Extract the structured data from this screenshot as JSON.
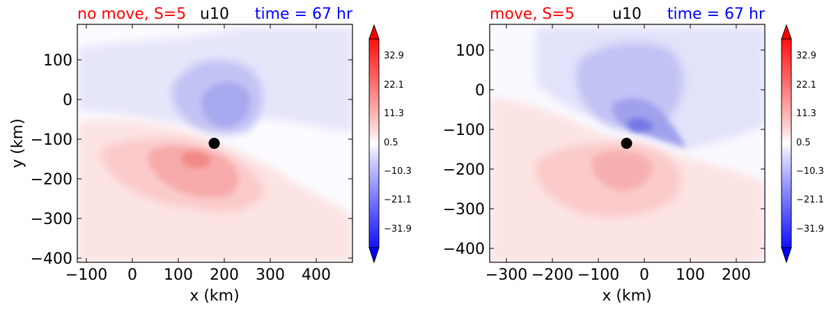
{
  "colors": {
    "red": "#ff0000",
    "blue": "#0000ff",
    "black": "#000000"
  },
  "charts": [
    {
      "title_left": "no move, S=5",
      "title_center": "u10",
      "title_right": "time = 67 hr",
      "xlabel": "x (km)",
      "ylabel": "y (km)",
      "xticks": [
        "−100",
        "0",
        "100",
        "200",
        "300",
        "400"
      ],
      "yticks": [
        "100",
        "0",
        "−100",
        "−200",
        "−300",
        "−400"
      ],
      "cb_ticks": [
        "32.9",
        "22.1",
        "11.3",
        "0.5",
        "−10.3",
        "−21.1",
        "−31.9"
      ]
    },
    {
      "title_left": "move, S=5",
      "title_center": "u10",
      "title_right": "time = 67 hr",
      "xlabel": "x (km)",
      "ylabel": "",
      "xticks": [
        "−300",
        "−200",
        "−100",
        "0",
        "100",
        "200"
      ],
      "yticks": [
        "100",
        "0",
        "−100",
        "−200",
        "−300",
        "−400"
      ],
      "cb_ticks": [
        "32.9",
        "22.1",
        "11.3",
        "0.5",
        "−10.3",
        "−21.1",
        "−31.9"
      ]
    }
  ],
  "chart_data": [
    {
      "type": "heatmap",
      "title": "no move, S=5   u10   time = 67 hr",
      "xlabel": "x (km)",
      "ylabel": "y (km)",
      "xlim": [
        -120,
        480
      ],
      "ylim": [
        -410,
        190
      ],
      "x_ticks": [
        -100,
        0,
        100,
        200,
        300,
        400
      ],
      "y_ticks": [
        100,
        0,
        -100,
        -200,
        -300,
        -400
      ],
      "center_marker": {
        "x": 180,
        "y": -108
      },
      "colorbar_ticks": [
        32.9,
        22.1,
        11.3,
        0.5,
        -10.3,
        -21.1,
        -31.9
      ],
      "colorbar_range": [
        -37.3,
        38.3
      ],
      "colormap": "bwr"
    },
    {
      "type": "heatmap",
      "title": "move, S=5   u10   time = 67 hr",
      "xlabel": "x (km)",
      "ylabel": "",
      "xlim": [
        -335,
        260
      ],
      "ylim": [
        -430,
        165
      ],
      "x_ticks": [
        -300,
        -200,
        -100,
        0,
        100,
        200
      ],
      "y_ticks": [
        100,
        0,
        -100,
        -200,
        -300,
        -400
      ],
      "center_marker": {
        "x": -38,
        "y": -132
      },
      "colorbar_ticks": [
        32.9,
        22.1,
        11.3,
        0.5,
        -10.3,
        -21.1,
        -31.9
      ],
      "colorbar_range": [
        -37.3,
        38.3
      ],
      "colormap": "bwr"
    }
  ]
}
